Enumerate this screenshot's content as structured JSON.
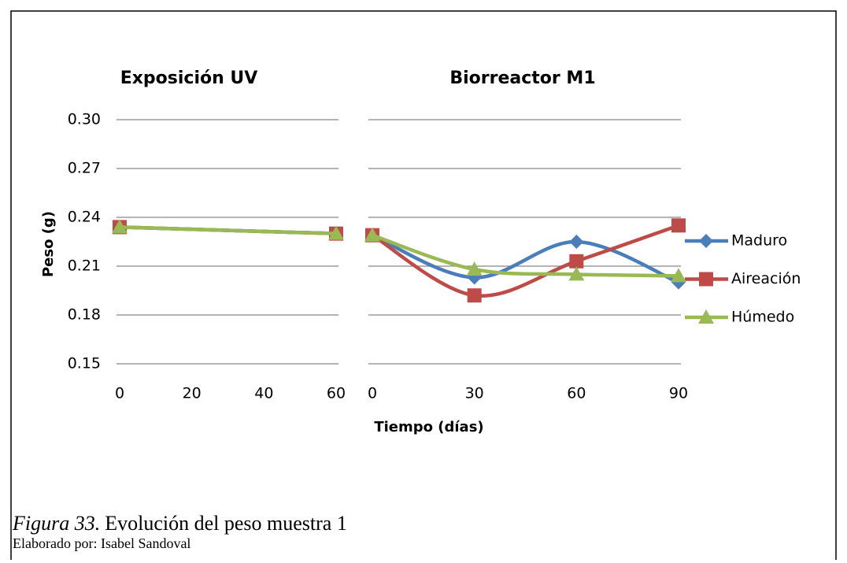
{
  "chart_data": [
    {
      "type": "line",
      "title": "Exposición UV",
      "ylabel": "Peso (g)",
      "x": [
        0,
        60
      ],
      "xlim": [
        0,
        60
      ],
      "xticks": [
        0,
        20,
        40,
        60
      ],
      "ylim": [
        0.15,
        0.3
      ],
      "yticks": [
        0.15,
        0.18,
        0.21,
        0.24,
        0.27,
        {
          "value": 0.3,
          "label": "0.30"
        }
      ],
      "grid": true,
      "series": [
        {
          "name": "Maduro",
          "color": "#4a7ebb",
          "marker": "diamond",
          "values": [
            0.234,
            0.23
          ]
        },
        {
          "name": "Aireación",
          "color": "#be4b48",
          "marker": "square",
          "values": [
            0.234,
            0.23
          ]
        },
        {
          "name": "Húmedo",
          "color": "#98b954",
          "marker": "triangle",
          "values": [
            0.234,
            0.23
          ]
        }
      ]
    },
    {
      "type": "line",
      "title": "Biorreactor M1",
      "xlabel": "Tiempo (días)",
      "smooth": true,
      "x": [
        0,
        30,
        60,
        90
      ],
      "xlim": [
        0,
        90
      ],
      "xticks": [
        0,
        30,
        60,
        90
      ],
      "ylim": [
        0.15,
        0.3
      ],
      "yticks": [
        0.15,
        0.18,
        0.21,
        0.24,
        0.27,
        0.3
      ],
      "grid": true,
      "legend": "right",
      "series": [
        {
          "name": "Maduro",
          "color": "#4a7ebb",
          "marker": "diamond",
          "values": [
            0.229,
            0.203,
            0.225,
            0.2
          ]
        },
        {
          "name": "Aireación",
          "color": "#be4b48",
          "marker": "square",
          "values": [
            0.229,
            0.192,
            0.213,
            0.235
          ]
        },
        {
          "name": "Húmedo",
          "color": "#98b954",
          "marker": "triangle",
          "values": [
            0.229,
            0.208,
            0.205,
            0.204
          ]
        }
      ]
    }
  ],
  "caption": {
    "label": "Figura 33.",
    "text": "Evolución del peso muestra 1"
  },
  "credit": "Elaborado por: Isabel Sandoval"
}
